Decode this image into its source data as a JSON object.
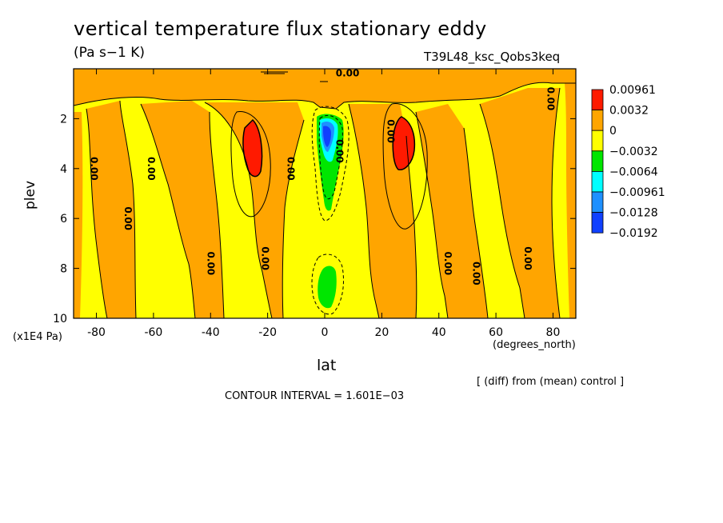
{
  "title": "vertical temperature flux stationary eddy",
  "units": "(Pa s−1 K)",
  "run_name": "T39L48_ksc_Qobs3keq",
  "footnote": "[ (diff) from (mean) control ]",
  "contour_interval": "CONTOUR INTERVAL = 1.601E−03",
  "colors": {
    "red": "#ff1a00",
    "orange": "#ffa500",
    "yellow": "#ffff00",
    "green": "#00e600",
    "cyan": "#00ffff",
    "lightblue": "#1e90ff",
    "blue": "#1040ff"
  },
  "chart_data": {
    "type": "heatmap",
    "title": "vertical temperature flux stationary eddy",
    "xlabel": "lat",
    "x_units": "(degrees_north)",
    "ylabel": "plev",
    "y_units": "(x1E4 Pa)",
    "xlim": [
      -88,
      88
    ],
    "ylim": [
      0,
      10
    ],
    "x_ticks": [
      -80,
      -60,
      -40,
      -20,
      0,
      20,
      40,
      60,
      80
    ],
    "y_ticks": [
      2,
      4,
      6,
      8,
      10
    ],
    "y_inverted": true,
    "colorbar": {
      "levels": [
        "0.00961",
        "0.0032",
        "0",
        "−0.0032",
        "−0.0064",
        "−0.00961",
        "−0.0128",
        "−0.0192"
      ],
      "fill_colors": [
        "red",
        "orange",
        "yellow",
        "green",
        "cyan",
        "lightblue",
        "blue"
      ]
    },
    "contour_labels": [
      {
        "text": "0.00",
        "lat": 8,
        "plev": 0.3
      },
      {
        "text": "0.00",
        "lat": 78,
        "plev": 1.2
      },
      {
        "text": "0.00",
        "lat": 22,
        "plev": 2.5
      },
      {
        "text": "0.00",
        "lat": 4,
        "plev": 3.3
      },
      {
        "text": "0.00",
        "lat": -13,
        "plev": 4.0
      },
      {
        "text": "0.00",
        "lat": -82,
        "plev": 4.0
      },
      {
        "text": "0.00",
        "lat": -62,
        "plev": 4.0
      },
      {
        "text": "0.00",
        "lat": -70,
        "plev": 6.0
      },
      {
        "text": "0.00",
        "lat": -41,
        "plev": 7.8
      },
      {
        "text": "0.00",
        "lat": -22,
        "plev": 7.6
      },
      {
        "text": "0.00",
        "lat": 42,
        "plev": 7.8
      },
      {
        "text": "0.00",
        "lat": 52,
        "plev": 8.2
      },
      {
        "text": "0.00",
        "lat": 70,
        "plev": 7.6
      }
    ]
  }
}
